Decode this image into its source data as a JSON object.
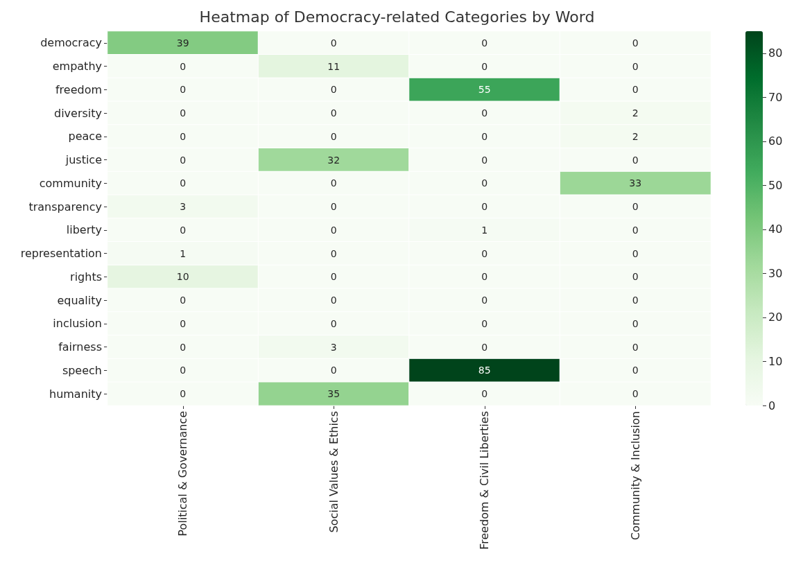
{
  "chart_data": {
    "type": "heatmap",
    "title": "Heatmap of Democracy-related Categories by Word",
    "categories": [
      "Political & Governance",
      "Social Values & Ethics",
      "Freedom & Civil Liberties",
      "Community & Inclusion"
    ],
    "y_categories": [
      "democracy",
      "empathy",
      "freedom",
      "diversity",
      "peace",
      "justice",
      "community",
      "transparency",
      "liberty",
      "representation",
      "rights",
      "equality",
      "inclusion",
      "fairness",
      "speech",
      "humanity"
    ],
    "cells": [
      [
        39,
        0,
        0,
        0
      ],
      [
        0,
        11,
        0,
        0
      ],
      [
        0,
        0,
        55,
        0
      ],
      [
        0,
        0,
        0,
        2
      ],
      [
        0,
        0,
        0,
        2
      ],
      [
        0,
        32,
        0,
        0
      ],
      [
        0,
        0,
        0,
        33
      ],
      [
        3,
        0,
        0,
        0
      ],
      [
        0,
        0,
        1,
        0
      ],
      [
        1,
        0,
        0,
        0
      ],
      [
        10,
        0,
        0,
        0
      ],
      [
        0,
        0,
        0,
        0
      ],
      [
        0,
        0,
        0,
        0
      ],
      [
        0,
        3,
        0,
        0
      ],
      [
        0,
        0,
        85,
        0
      ],
      [
        0,
        35,
        0,
        0
      ]
    ],
    "clim": [
      0,
      85
    ],
    "cticks": [
      0,
      10,
      20,
      30,
      40,
      50,
      60,
      70,
      80
    ],
    "data_labels": true
  }
}
